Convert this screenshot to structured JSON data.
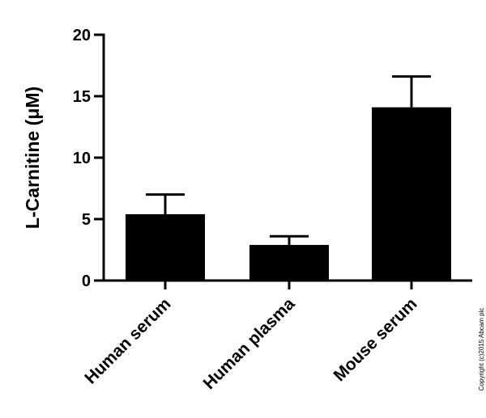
{
  "chart_data": {
    "type": "bar",
    "categories": [
      "Human serum",
      "Human plasma",
      "Mouse serum"
    ],
    "values": [
      5.4,
      2.9,
      14.1
    ],
    "error_upper": [
      1.6,
      0.7,
      2.5
    ],
    "ylabel": "L-Carnitine (μM)",
    "ylim": [
      0,
      20
    ],
    "yticks": [
      0,
      5,
      10,
      15,
      20
    ],
    "grid": false,
    "bar_color": "#000000"
  },
  "copyright": "Copyright (c)2015 Abcam plc"
}
